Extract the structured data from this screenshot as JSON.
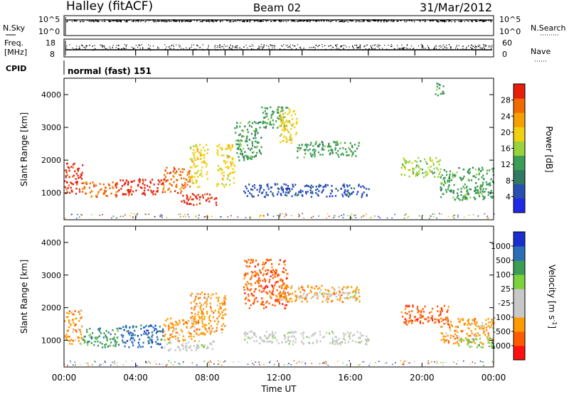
{
  "header": {
    "title": "Halley (fitACF)",
    "beam": "Beam 02",
    "date": "31/Mar/2012"
  },
  "nsky": {
    "label": "N.Sky",
    "ticks": [
      "10^5",
      "10^0"
    ],
    "right_label": "N.Search",
    "right_ticks": [
      "10^5",
      "10^0"
    ]
  },
  "freq": {
    "label_line1": "Freq.",
    "label_line2": "[MHz]",
    "ticks": [
      "18",
      "8"
    ],
    "right_label": "Nave",
    "right_ticks": [
      "60",
      "0"
    ]
  },
  "cpid": {
    "label": "CPID",
    "text": "normal (fast) 151"
  },
  "colors": {
    "power": [
      "#1e28e6",
      "#2a4fb0",
      "#2f7a60",
      "#3c9e55",
      "#9ad23c",
      "#f0d010",
      "#f5a000",
      "#f06a00",
      "#e61e0a"
    ],
    "velocity": [
      "#ff1010",
      "#ff5a00",
      "#ff9900",
      "#c8c8c8",
      "#c8c8c8",
      "#7cd23c",
      "#3a9e55",
      "#2a6eb8",
      "#1a2ecf"
    ]
  },
  "chart_data": [
    {
      "type": "heatmap",
      "panel": "power",
      "xlabel": "",
      "ylabel": "Slant Range [km]",
      "ylim": [
        180,
        4500
      ],
      "yticks": [
        "1000",
        "2000",
        "3000",
        "4000"
      ],
      "xlim_hours": [
        0,
        24
      ],
      "colorbar_label": "Power [dB]",
      "colorbar_ticks": [
        "4",
        "8",
        "12",
        "16",
        "20",
        "24",
        "28"
      ],
      "regions": [
        {
          "t": [
            0.0,
            1.0
          ],
          "r": [
            1000,
            1950
          ],
          "level": 8
        },
        {
          "t": [
            1.0,
            3.0
          ],
          "r": [
            900,
            1350
          ],
          "level": 7
        },
        {
          "t": [
            3.0,
            5.5
          ],
          "r": [
            950,
            1450
          ],
          "level": 8
        },
        {
          "t": [
            5.5,
            7.0
          ],
          "r": [
            1000,
            1800
          ],
          "level": 7
        },
        {
          "t": [
            6.5,
            8.5
          ],
          "r": [
            650,
            1000
          ],
          "level": 8
        },
        {
          "t": [
            7.0,
            8.0
          ],
          "r": [
            1200,
            2500
          ],
          "level": 5
        },
        {
          "t": [
            8.5,
            9.5
          ],
          "r": [
            1200,
            2500
          ],
          "level": 5
        },
        {
          "t": [
            9.5,
            11.0
          ],
          "r": [
            2000,
            3200
          ],
          "level": 3
        },
        {
          "t": [
            11.0,
            12.5
          ],
          "r": [
            3000,
            3700
          ],
          "level": 3
        },
        {
          "t": [
            12.0,
            13.0
          ],
          "r": [
            2500,
            3600
          ],
          "level": 5
        },
        {
          "t": [
            13.0,
            16.5
          ],
          "r": [
            2100,
            2600
          ],
          "level": 3
        },
        {
          "t": [
            10.0,
            17.0
          ],
          "r": [
            900,
            1300
          ],
          "level": 1
        },
        {
          "t": [
            18.8,
            21.0
          ],
          "r": [
            1500,
            2100
          ],
          "level": 4
        },
        {
          "t": [
            21.0,
            24.0
          ],
          "r": [
            800,
            1800
          ],
          "level": 3
        },
        {
          "t": [
            20.7,
            21.2
          ],
          "r": [
            4000,
            4400
          ],
          "level": 3
        }
      ]
    },
    {
      "type": "heatmap",
      "panel": "velocity",
      "xlabel": "Time UT",
      "ylabel": "Slant Range [km]",
      "ylim": [
        180,
        4500
      ],
      "yticks": [
        "1000",
        "2000",
        "3000",
        "4000"
      ],
      "xlim_hours": [
        0,
        24
      ],
      "xticks": [
        "00:00",
        "04:00",
        "08:00",
        "12:00",
        "16:00",
        "20:00",
        "00:00"
      ],
      "colorbar_label": "Velocity",
      "colorbar_unit": "[m s",
      "colorbar_unit_exp": "-1",
      "colorbar_unit_close": "]",
      "colorbar_ticks": [
        "1000",
        "500",
        "100",
        "25",
        "-25",
        "-100",
        "-500",
        "-1000"
      ],
      "regions": [
        {
          "t": [
            0.0,
            1.0
          ],
          "r": [
            900,
            1950
          ],
          "level": 2
        },
        {
          "t": [
            1.0,
            3.0
          ],
          "r": [
            800,
            1400
          ],
          "level": 6
        },
        {
          "t": [
            3.0,
            5.5
          ],
          "r": [
            800,
            1500
          ],
          "level": 7
        },
        {
          "t": [
            5.5,
            8.5
          ],
          "r": [
            700,
            1000
          ],
          "level": 4
        },
        {
          "t": [
            5.5,
            7.5
          ],
          "r": [
            1000,
            1700
          ],
          "level": 2
        },
        {
          "t": [
            7.0,
            9.0
          ],
          "r": [
            1200,
            2500
          ],
          "level": 2
        },
        {
          "t": [
            10.0,
            12.5
          ],
          "r": [
            2000,
            3500
          ],
          "level": 1
        },
        {
          "t": [
            12.0,
            16.5
          ],
          "r": [
            2200,
            2700
          ],
          "level": 2
        },
        {
          "t": [
            13.0,
            16.5
          ],
          "r": [
            2300,
            2500
          ],
          "level": 4
        },
        {
          "t": [
            10.0,
            17.0
          ],
          "r": [
            900,
            1300
          ],
          "level": 4
        },
        {
          "t": [
            18.8,
            21.5
          ],
          "r": [
            1500,
            2100
          ],
          "level": 1
        },
        {
          "t": [
            21.0,
            24.0
          ],
          "r": [
            900,
            1700
          ],
          "level": 2
        },
        {
          "t": [
            22.0,
            24.0
          ],
          "r": [
            800,
            1100
          ],
          "level": 5
        }
      ]
    }
  ]
}
